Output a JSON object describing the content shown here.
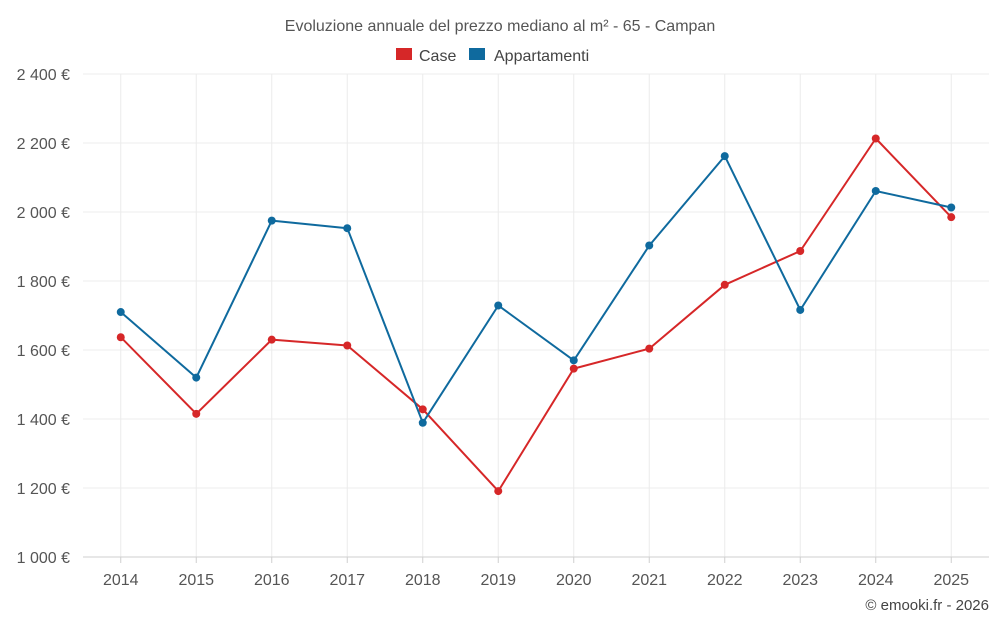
{
  "chart_data": {
    "type": "line",
    "title": "Evoluzione annuale del prezzo mediano al m² - 65 - Campan",
    "categories": [
      "2014",
      "2015",
      "2016",
      "2017",
      "2018",
      "2019",
      "2020",
      "2021",
      "2022",
      "2023",
      "2024",
      "2025"
    ],
    "series": [
      {
        "name": "Case",
        "color": "#d62728",
        "values": [
          1637,
          1415,
          1630,
          1613,
          1428,
          1191,
          1546,
          1604,
          1789,
          1887,
          2213,
          1985
        ]
      },
      {
        "name": "Appartamenti",
        "color": "#0f6a9e",
        "values": [
          1710,
          1520,
          1975,
          1953,
          1389,
          1729,
          1570,
          1903,
          2162,
          1716,
          2061,
          2013
        ]
      }
    ],
    "ylim": [
      1000,
      2400
    ],
    "yticks": [
      1000,
      1200,
      1400,
      1600,
      1800,
      2000,
      2200,
      2400
    ],
    "ytick_labels": [
      "1 000 €",
      "1 200 €",
      "1 400 €",
      "1 600 €",
      "1 800 €",
      "2 000 €",
      "2 200 €",
      "2 400 €"
    ],
    "xlabel": "",
    "ylabel": "",
    "legend_position": "top-center",
    "grid": true,
    "credit": "© emooki.fr - 2026"
  }
}
